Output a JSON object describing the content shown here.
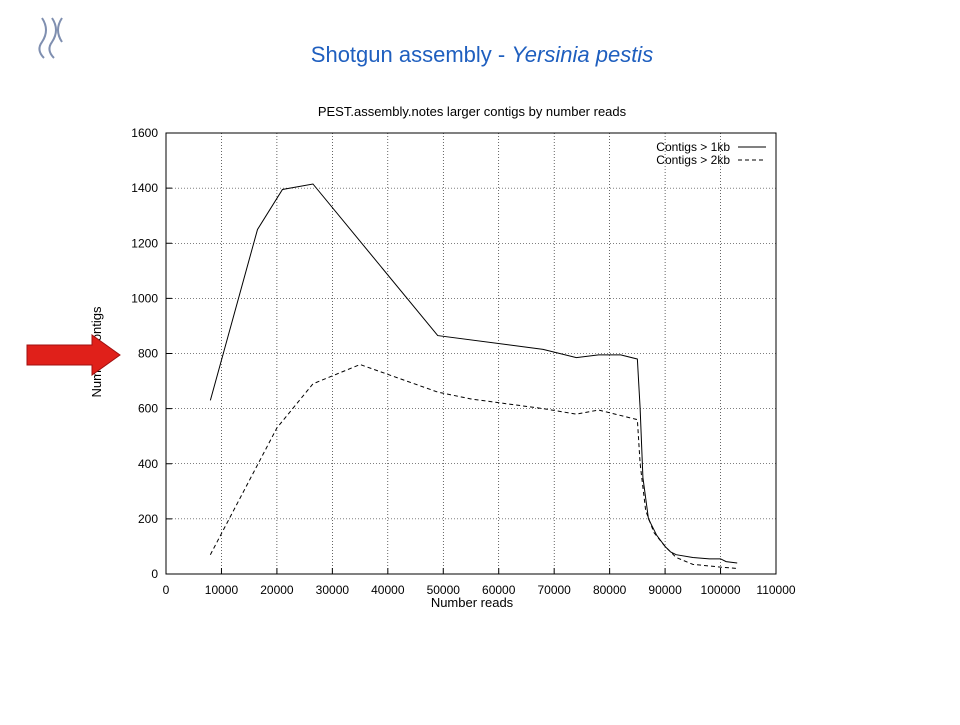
{
  "slide": {
    "title": "Shotgun assembly -",
    "title_italic": "Yersinia pestis"
  },
  "chart_data": {
    "type": "line",
    "title": "PEST.assembly.notes larger contigs by number reads",
    "x_label": "Number reads",
    "y_label": "Number contigs",
    "xlim": [
      0,
      110000
    ],
    "xticks": [
      0,
      10000,
      20000,
      30000,
      40000,
      50000,
      60000,
      70000,
      80000,
      90000,
      100000,
      110000
    ],
    "ylim": [
      0,
      1600
    ],
    "yticks": [
      0,
      200,
      400,
      600,
      800,
      1000,
      1200,
      1400,
      1600
    ],
    "grid": true,
    "legend": "top-right",
    "series": [
      {
        "name": "Contigs > 1kb",
        "color": "#000000",
        "dash": "none",
        "x": [
          8000,
          16500,
          21000,
          26500,
          49000,
          68000,
          74000,
          78000,
          82000,
          85000,
          85500,
          86000,
          87000,
          88500,
          90000,
          91000,
          92000,
          95000,
          98000,
          100000,
          101000,
          103000
        ],
        "values": [
          630,
          1250,
          1395,
          1415,
          865,
          815,
          785,
          795,
          795,
          780,
          600,
          350,
          200,
          140,
          100,
          80,
          70,
          60,
          55,
          55,
          45,
          40
        ]
      },
      {
        "name": "Contigs > 2kb",
        "color": "#000000",
        "dash": "4,3",
        "x": [
          8000,
          20000,
          26500,
          35000,
          49000,
          55000,
          68000,
          74000,
          78000,
          85000,
          85500,
          86500,
          88000,
          90000,
          92000,
          95000,
          100000,
          103000
        ],
        "values": [
          70,
          530,
          690,
          760,
          660,
          635,
          600,
          580,
          595,
          560,
          400,
          230,
          150,
          100,
          60,
          35,
          25,
          20
        ]
      }
    ]
  }
}
